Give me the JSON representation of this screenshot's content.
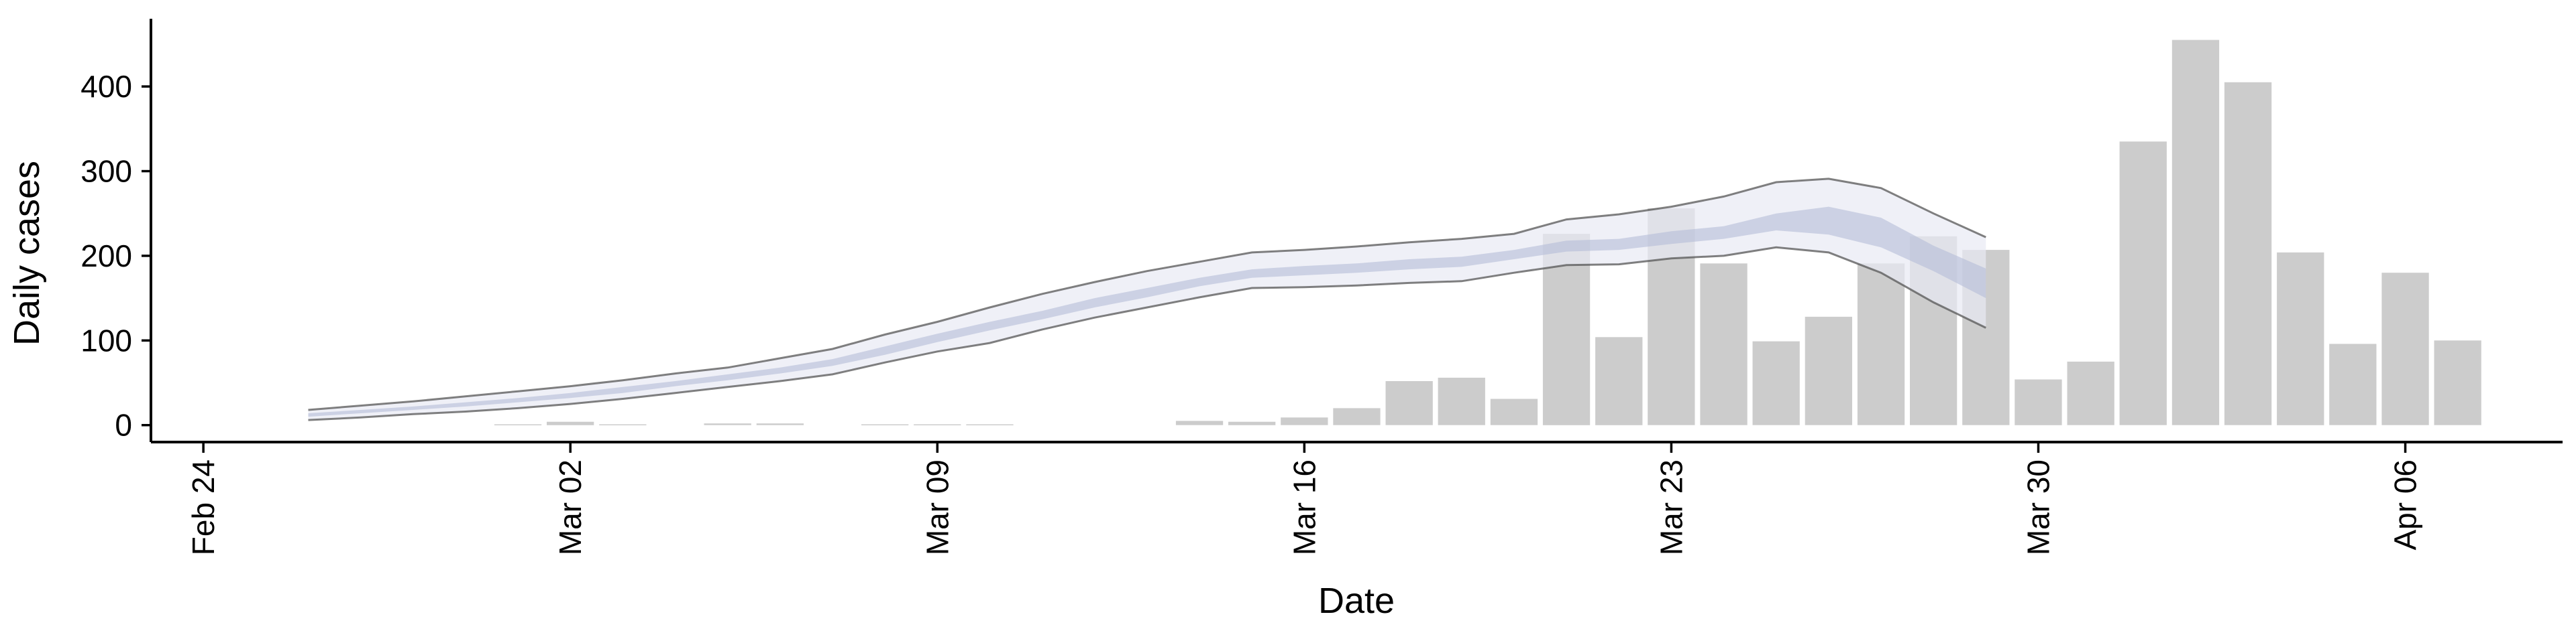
{
  "chart_data": {
    "type": "bar",
    "xlabel": "Date",
    "ylabel": "Daily cases",
    "ylim": [
      -20,
      480
    ],
    "xlim": [
      "2020-02-23",
      "2020-04-09"
    ],
    "grid": false,
    "x_ticks": [
      "2020-02-24",
      "2020-03-02",
      "2020-03-09",
      "2020-03-16",
      "2020-03-23",
      "2020-03-30",
      "2020-04-06"
    ],
    "x_tick_labels": [
      "Feb 24",
      "Mar 02",
      "Mar 09",
      "Mar 16",
      "Mar 23",
      "Mar 30",
      "Apr 06"
    ],
    "y_ticks": [
      0,
      100,
      200,
      300,
      400
    ],
    "colors": {
      "bars": "#cccccc",
      "outer_band": "#e8eaf3",
      "inner_band": "#b4bcd7",
      "band_edge": "#555555"
    },
    "bars": {
      "x": [
        "2020-03-01",
        "2020-03-02",
        "2020-03-03",
        "2020-03-05",
        "2020-03-06",
        "2020-03-08",
        "2020-03-09",
        "2020-03-10",
        "2020-03-14",
        "2020-03-15",
        "2020-03-16",
        "2020-03-17",
        "2020-03-18",
        "2020-03-19",
        "2020-03-20",
        "2020-03-21",
        "2020-03-22",
        "2020-03-23",
        "2020-03-24",
        "2020-03-25",
        "2020-03-26",
        "2020-03-27",
        "2020-03-28",
        "2020-03-29",
        "2020-03-30",
        "2020-03-31",
        "2020-04-01",
        "2020-04-02",
        "2020-04-03",
        "2020-04-04",
        "2020-04-05",
        "2020-04-06",
        "2020-04-07"
      ],
      "values": [
        1,
        4,
        1,
        2,
        2,
        1,
        1,
        1,
        5,
        4,
        9,
        20,
        52,
        56,
        31,
        226,
        104,
        256,
        191,
        99,
        128,
        191,
        223,
        207,
        54,
        75,
        335,
        455,
        405,
        204,
        96,
        180,
        100
      ]
    },
    "nowcast": {
      "x": [
        "2020-02-26",
        "2020-02-27",
        "2020-02-28",
        "2020-02-29",
        "2020-03-01",
        "2020-03-02",
        "2020-03-03",
        "2020-03-04",
        "2020-03-05",
        "2020-03-06",
        "2020-03-07",
        "2020-03-08",
        "2020-03-09",
        "2020-03-10",
        "2020-03-11",
        "2020-03-12",
        "2020-03-13",
        "2020-03-14",
        "2020-03-15",
        "2020-03-16",
        "2020-03-17",
        "2020-03-18",
        "2020-03-19",
        "2020-03-20",
        "2020-03-21",
        "2020-03-22",
        "2020-03-23",
        "2020-03-24",
        "2020-03-25",
        "2020-03-26",
        "2020-03-27",
        "2020-03-28",
        "2020-03-29"
      ],
      "lower_90": [
        6,
        9,
        13,
        16,
        20,
        25,
        31,
        38,
        45,
        52,
        60,
        74,
        87,
        97,
        113,
        127,
        139,
        151,
        162,
        163,
        165,
        168,
        170,
        180,
        189,
        190,
        197,
        200,
        210,
        204,
        180,
        145,
        115
      ],
      "upper_90": [
        18,
        23,
        28,
        34,
        40,
        46,
        53,
        61,
        68,
        79,
        90,
        107,
        122,
        139,
        155,
        169,
        182,
        193,
        204,
        207,
        211,
        216,
        220,
        226,
        243,
        249,
        258,
        270,
        287,
        291,
        280,
        250,
        222
      ],
      "lower_50": [
        10,
        14,
        18,
        22,
        27,
        32,
        38,
        46,
        53,
        61,
        70,
        83,
        98,
        112,
        125,
        139,
        151,
        164,
        174,
        177,
        180,
        184,
        187,
        196,
        205,
        207,
        214,
        220,
        230,
        225,
        210,
        182,
        150
      ],
      "upper_50": [
        14,
        18,
        22,
        27,
        32,
        38,
        45,
        52,
        60,
        68,
        78,
        93,
        108,
        122,
        135,
        150,
        162,
        174,
        184,
        188,
        191,
        196,
        199,
        207,
        218,
        220,
        229,
        235,
        250,
        258,
        245,
        212,
        185
      ]
    }
  }
}
